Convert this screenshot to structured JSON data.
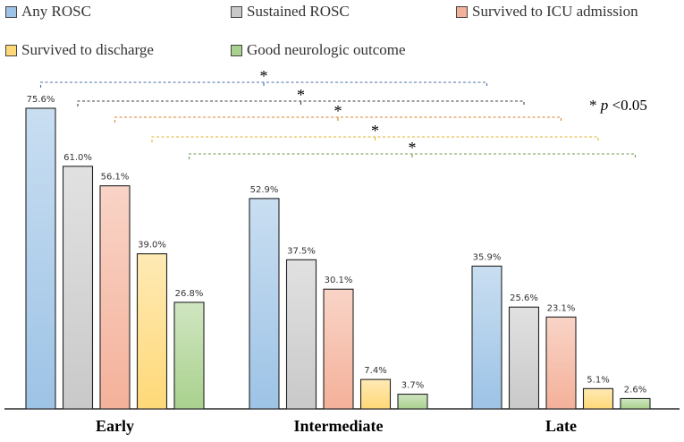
{
  "chart_data": {
    "type": "bar",
    "title": "",
    "xlabel": "",
    "ylabel": "",
    "ylim": [
      0,
      80
    ],
    "grid": false,
    "legend_position": "top",
    "categories": [
      "Early",
      "Intermediate",
      "Late"
    ],
    "series": [
      {
        "name": "Any ROSC",
        "color": "#9dc3e6",
        "values": [
          75.6,
          52.9,
          35.9
        ],
        "labels": [
          "75.6%",
          "52.9%",
          "35.9%"
        ]
      },
      {
        "name": "Sustained ROSC",
        "color": "#c9c9c9",
        "values": [
          61.0,
          37.5,
          25.6
        ],
        "labels": [
          "61.0%",
          "37.5%",
          "25.6%"
        ]
      },
      {
        "name": "Survived to ICU admission",
        "color": "#f4b19a",
        "values": [
          56.1,
          30.1,
          23.1
        ],
        "labels": [
          "56.1%",
          "30.1%",
          "23.1%"
        ]
      },
      {
        "name": "Survived to discharge",
        "color": "#ffd978",
        "values": [
          39.0,
          7.4,
          5.1
        ],
        "labels": [
          "39.0%",
          "7.4%",
          "5.1%"
        ]
      },
      {
        "name": "Good neurologic outcome",
        "color": "#a9d18e",
        "values": [
          26.8,
          3.7,
          2.6
        ],
        "labels": [
          "26.8%",
          "3.7%",
          "2.6%"
        ]
      }
    ],
    "significance": {
      "marker": "*",
      "note_prefix": "* ",
      "note_p": "p",
      "note_suffix": " <0.05",
      "brackets": [
        {
          "series": "Any ROSC",
          "color": "#4a6fa5"
        },
        {
          "series": "Sustained ROSC",
          "color": "#404040"
        },
        {
          "series": "Survived to ICU admission",
          "color": "#d9822b"
        },
        {
          "series": "Survived to discharge",
          "color": "#e3b22b"
        },
        {
          "series": "Good neurologic outcome",
          "color": "#6f9a4f"
        }
      ]
    }
  }
}
